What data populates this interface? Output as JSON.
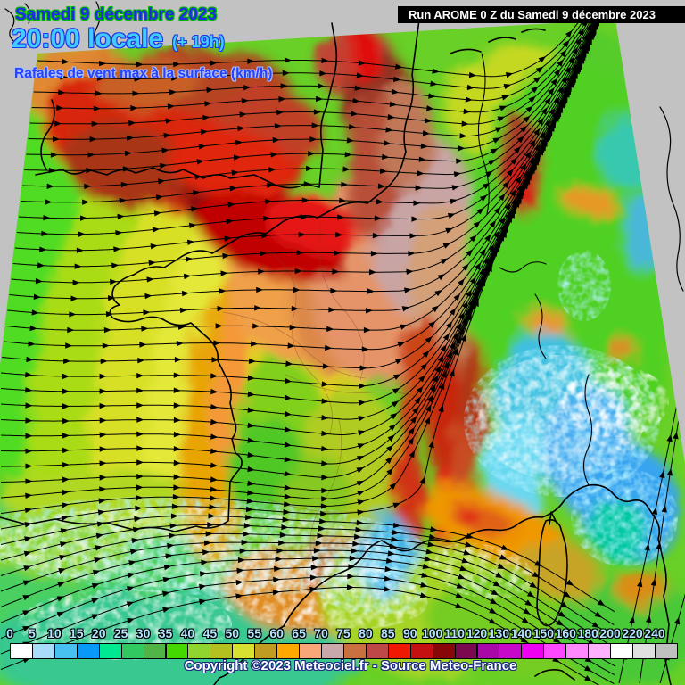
{
  "header": {
    "date": "Samedi 9 décembre 2023",
    "time": "20:00 locale",
    "offset": "(+ 19h)",
    "parameter": "Rafales de vent max à la surface (km/h)",
    "run": "Run AROME 0 Z du Samedi 9 décembre 2023"
  },
  "legend": {
    "values": [
      "0",
      "5",
      "10",
      "15",
      "20",
      "25",
      "30",
      "35",
      "40",
      "45",
      "50",
      "55",
      "60",
      "65",
      "70",
      "75",
      "80",
      "85",
      "90",
      "100",
      "110",
      "120",
      "130",
      "140",
      "150",
      "160",
      "180",
      "200",
      "220",
      "240"
    ],
    "colors": [
      "#ffffff",
      "#a8dcf8",
      "#48c0f0",
      "#0898f8",
      "#00e890",
      "#30c860",
      "#50b448",
      "#44d800",
      "#90d430",
      "#b4c020",
      "#d8e030",
      "#c09c20",
      "#ffa800",
      "#f8a878",
      "#c8a8a8",
      "#c87040",
      "#bc4848",
      "#f01800",
      "#c41010",
      "#880808",
      "#7c0850",
      "#a808a8",
      "#c808c8",
      "#f000f0",
      "#ff48ff",
      "#ff88ff",
      "#ffb0ff",
      "#ffffff",
      "#e0e0e0",
      "#c0c0c0"
    ]
  },
  "footer": {
    "copyright": "Copyright ©2023 Meteociel.fr - Source Meteo-France"
  },
  "colors": {
    "outside_domain": "#c2c2c2",
    "runbar_bg": "#000000",
    "date_text": "#2028f0",
    "time_text": "#40ccff",
    "subtitle_text": "#2840ff"
  }
}
